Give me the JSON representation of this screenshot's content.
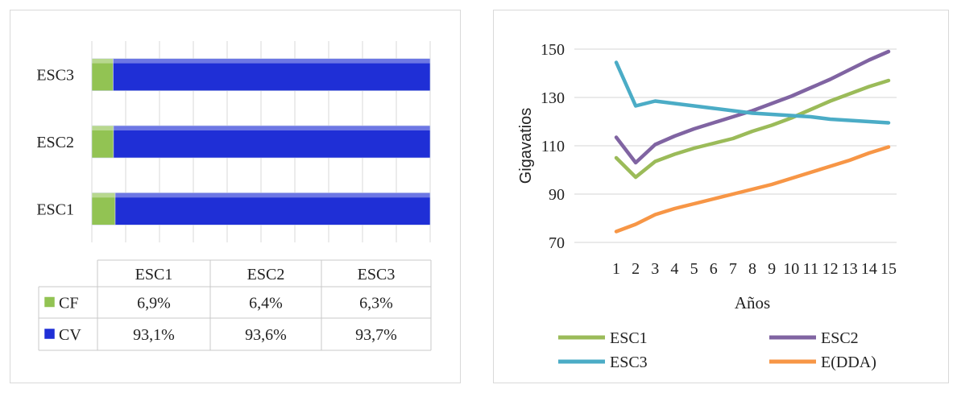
{
  "chart_data": [
    {
      "type": "bar",
      "orientation": "horizontal",
      "stacked": true,
      "percent_stacked": true,
      "categories": [
        "ESC1",
        "ESC2",
        "ESC3"
      ],
      "series": [
        {
          "name": "CF",
          "color": "#92c353",
          "values": [
            6.9,
            6.4,
            6.3
          ]
        },
        {
          "name": "CV",
          "color": "#1f2fd6",
          "values": [
            93.1,
            93.6,
            93.7
          ]
        }
      ],
      "data_table": {
        "headers": [
          "ESC1",
          "ESC2",
          "ESC3"
        ],
        "rows": [
          {
            "label": "CF",
            "cells": [
              "6,9%",
              "6,4%",
              "6,3%"
            ]
          },
          {
            "label": "CV",
            "cells": [
              "93,1%",
              "93,6%",
              "93,7%"
            ]
          }
        ]
      },
      "xlim": [
        0,
        100
      ],
      "grid": true
    },
    {
      "type": "line",
      "x": [
        1,
        2,
        3,
        4,
        5,
        6,
        7,
        8,
        9,
        10,
        11,
        12,
        13,
        14,
        15
      ],
      "x_tick_labels": [
        "1",
        "2",
        "3",
        "4",
        "5",
        "6",
        "7",
        "8",
        "9",
        "10",
        "11",
        "12",
        "13",
        "14",
        "15"
      ],
      "y_ticks": [
        "70",
        "90",
        "110",
        "130",
        "150"
      ],
      "xlabel": "Años",
      "ylabel": "Gigavatios",
      "ylim": [
        70,
        150
      ],
      "grid": true,
      "legend_position": "bottom",
      "series": [
        {
          "name": "ESC1",
          "color": "#9bbb59",
          "values": [
            105,
            97,
            103.5,
            106.5,
            109,
            111,
            113,
            116,
            118.5,
            121.5,
            125,
            128.5,
            131.5,
            134.5,
            137
          ]
        },
        {
          "name": "ESC2",
          "color": "#8064a2",
          "values": [
            113.5,
            103,
            110.5,
            114,
            117,
            119.5,
            122,
            124.5,
            127.5,
            130.5,
            134,
            137.5,
            141.5,
            145.5,
            149
          ]
        },
        {
          "name": "ESC3",
          "color": "#4bacc6",
          "values": [
            144.5,
            126.5,
            128.5,
            127.5,
            126.5,
            125.5,
            124.5,
            123.5,
            123,
            122.5,
            122,
            121,
            120.5,
            120,
            119.5
          ]
        },
        {
          "name": "E(DDA)",
          "color": "#f79646",
          "values": [
            74.5,
            77.5,
            81.5,
            84,
            86,
            88,
            90,
            92,
            94,
            96.5,
            99,
            101.5,
            104,
            107,
            109.5
          ]
        }
      ]
    }
  ]
}
